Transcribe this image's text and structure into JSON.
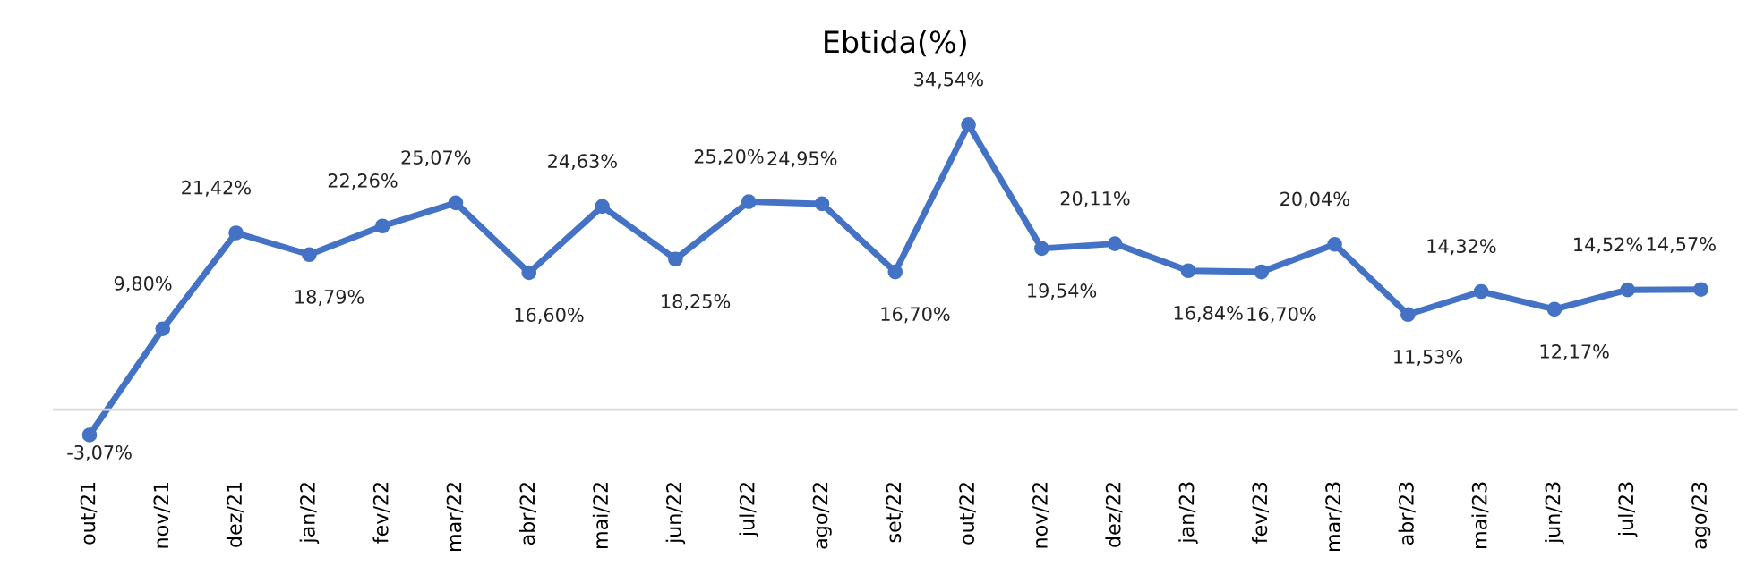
{
  "chart_data": {
    "type": "line",
    "title": "Ebtida(%)",
    "categories": [
      "out/21",
      "nov/21",
      "dez/21",
      "jan/22",
      "fev/22",
      "mar/22",
      "abr/22",
      "mai/22",
      "jun/22",
      "jul/22",
      "ago/22",
      "set/22",
      "out/22",
      "nov/22",
      "dez/22",
      "jan/23",
      "fev/23",
      "mar/23",
      "abr/23",
      "mai/23",
      "jun/23",
      "jul/23",
      "ago/23"
    ],
    "series": [
      {
        "color": "#4472c4",
        "values": [
          -3.07,
          9.8,
          21.42,
          18.79,
          22.26,
          25.07,
          16.6,
          24.63,
          18.25,
          25.2,
          24.95,
          16.7,
          34.54,
          19.54,
          20.11,
          16.84,
          16.7,
          20.04,
          11.53,
          14.32,
          12.17,
          14.52,
          14.57
        ],
        "value_labels": [
          "-3,07%",
          "9,80%",
          "21,42%",
          "18,79%",
          "22,26%",
          "25,07%",
          "16,60%",
          "24,63%",
          "18,25%",
          "25,20%",
          "24,95%",
          "16,70%",
          "34,54%",
          "19,54%",
          "20,11%",
          "16,84%",
          "16,70%",
          "20,04%",
          "11,53%",
          "14,32%",
          "12,17%",
          "14,52%",
          "14,57%"
        ]
      }
    ],
    "marker": "circle",
    "line_style": "solid",
    "grid": false,
    "legend": false,
    "tick_labels": "x"
  }
}
